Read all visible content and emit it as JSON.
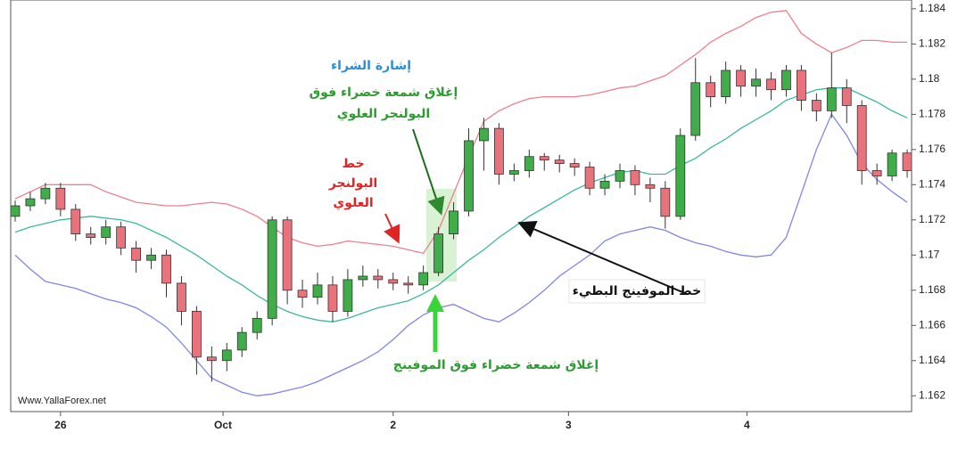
{
  "chart_data": {
    "type": "candlestick",
    "watermark": "Www.YallaForex.net",
    "up_color": "#3fae49",
    "down_color": "#e8737d",
    "ylim": [
      1.1611,
      1.1845
    ],
    "yticks": [
      1.162,
      1.164,
      1.166,
      1.168,
      1.17,
      1.172,
      1.174,
      1.176,
      1.178,
      1.18,
      1.182,
      1.184
    ],
    "xticks": [
      {
        "value": 3,
        "label": "26"
      },
      {
        "value": 13.75,
        "label": "Oct"
      },
      {
        "value": 25,
        "label": "2"
      },
      {
        "value": 36.6,
        "label": "3"
      },
      {
        "value": 48.4,
        "label": "4"
      }
    ],
    "open": [
      1.1722,
      1.1728,
      1.1732,
      1.1738,
      1.1726,
      1.1712,
      1.171,
      1.1716,
      1.1704,
      1.1697,
      1.17,
      1.1684,
      1.1668,
      1.1642,
      1.164,
      1.1646,
      1.1656,
      1.1664,
      1.172,
      1.168,
      1.1676,
      1.1683,
      1.1668,
      1.1686,
      1.1688,
      1.1686,
      1.1684,
      1.1683,
      1.169,
      1.1712,
      1.1725,
      1.1765,
      1.1772,
      1.1746,
      1.1748,
      1.1756,
      1.1754,
      1.1752,
      1.175,
      1.1738,
      1.1742,
      1.1748,
      1.174,
      1.1738,
      1.1722,
      1.1768,
      1.1798,
      1.179,
      1.1805,
      1.1796,
      1.18,
      1.1794,
      1.1805,
      1.1788,
      1.1782,
      1.1795,
      1.1785,
      1.1748,
      1.1745,
      1.1758
    ],
    "high": [
      1.1731,
      1.1736,
      1.1741,
      1.1741,
      1.1729,
      1.1716,
      1.172,
      1.1719,
      1.1708,
      1.1704,
      1.1703,
      1.1688,
      1.1671,
      1.1648,
      1.165,
      1.1659,
      1.1668,
      1.1722,
      1.1722,
      1.1686,
      1.169,
      1.1688,
      1.1692,
      1.1694,
      1.1692,
      1.169,
      1.1688,
      1.1694,
      1.1716,
      1.173,
      1.1772,
      1.1778,
      1.1775,
      1.1752,
      1.176,
      1.1758,
      1.1757,
      1.1755,
      1.1753,
      1.1746,
      1.1752,
      1.1751,
      1.1744,
      1.1742,
      1.1772,
      1.1812,
      1.1802,
      1.181,
      1.1808,
      1.1806,
      1.1804,
      1.1808,
      1.1808,
      1.1792,
      1.1815,
      1.18,
      1.1788,
      1.1752,
      1.176,
      1.176
    ],
    "low": [
      1.1719,
      1.1725,
      1.1729,
      1.1722,
      1.1708,
      1.1706,
      1.1706,
      1.17,
      1.169,
      1.1692,
      1.1676,
      1.166,
      1.1632,
      1.1628,
      1.1634,
      1.1642,
      1.1652,
      1.166,
      1.1672,
      1.167,
      1.1672,
      1.1662,
      1.1665,
      1.1682,
      1.1681,
      1.168,
      1.1678,
      1.168,
      1.1688,
      1.1709,
      1.1722,
      1.1748,
      1.174,
      1.1742,
      1.1744,
      1.1748,
      1.1747,
      1.1745,
      1.1734,
      1.1734,
      1.1738,
      1.1734,
      1.173,
      1.1715,
      1.172,
      1.1765,
      1.1784,
      1.1786,
      1.179,
      1.179,
      1.1788,
      1.179,
      1.1782,
      1.1776,
      1.1778,
      1.1775,
      1.174,
      1.174,
      1.1742,
      1.1744
    ],
    "close": [
      1.1728,
      1.1732,
      1.1738,
      1.1726,
      1.1712,
      1.171,
      1.1716,
      1.1704,
      1.1697,
      1.17,
      1.1684,
      1.1668,
      1.1642,
      1.164,
      1.1646,
      1.1656,
      1.1664,
      1.172,
      1.168,
      1.1676,
      1.1683,
      1.1668,
      1.1686,
      1.1688,
      1.1686,
      1.1684,
      1.1683,
      1.169,
      1.1712,
      1.1725,
      1.1765,
      1.1772,
      1.1746,
      1.1748,
      1.1756,
      1.1754,
      1.1752,
      1.175,
      1.1738,
      1.1742,
      1.1748,
      1.174,
      1.1738,
      1.1722,
      1.1768,
      1.1798,
      1.179,
      1.1805,
      1.1796,
      1.18,
      1.1794,
      1.1805,
      1.1788,
      1.1782,
      1.1795,
      1.1785,
      1.1748,
      1.1745,
      1.1758,
      1.1748
    ],
    "series": [
      {
        "color": "#ee7f8c",
        "values": [
          1.1732,
          1.1736,
          1.174,
          1.174,
          1.174,
          1.174,
          1.1736,
          1.1733,
          1.173,
          1.1729,
          1.1728,
          1.1728,
          1.1729,
          1.173,
          1.1729,
          1.1726,
          1.1722,
          1.1716,
          1.171,
          1.1707,
          1.1705,
          1.1706,
          1.1708,
          1.1707,
          1.1706,
          1.1705,
          1.1703,
          1.1701,
          1.1714,
          1.1735,
          1.1756,
          1.1776,
          1.1782,
          1.1786,
          1.1789,
          1.179,
          1.179,
          1.179,
          1.1791,
          1.1793,
          1.1795,
          1.1796,
          1.1799,
          1.1802,
          1.1808,
          1.1814,
          1.1821,
          1.1826,
          1.183,
          1.1835,
          1.1838,
          1.1839,
          1.1826,
          1.182,
          1.1815,
          1.1818,
          1.1822,
          1.1822,
          1.1821,
          1.1821
        ]
      },
      {
        "color": "#3cb8a2",
        "values": [
          1.1713,
          1.1716,
          1.1718,
          1.172,
          1.1721,
          1.1722,
          1.1721,
          1.172,
          1.1718,
          1.1714,
          1.171,
          1.1705,
          1.17,
          1.1694,
          1.1688,
          1.1683,
          1.1677,
          1.1672,
          1.1668,
          1.1665,
          1.1663,
          1.1662,
          1.1664,
          1.1667,
          1.167,
          1.1672,
          1.1674,
          1.1678,
          1.1683,
          1.169,
          1.1697,
          1.1703,
          1.171,
          1.1716,
          1.1722,
          1.1727,
          1.1732,
          1.1737,
          1.1741,
          1.1744,
          1.1747,
          1.1748,
          1.1746,
          1.1746,
          1.1751,
          1.1755,
          1.1761,
          1.1766,
          1.1772,
          1.1777,
          1.1782,
          1.1788,
          1.1791,
          1.1794,
          1.1795,
          1.1795,
          1.1791,
          1.1787,
          1.1782,
          1.1778
        ]
      },
      {
        "color": "#7f86e6",
        "values": [
          1.17,
          1.1692,
          1.1685,
          1.1683,
          1.1681,
          1.1678,
          1.1675,
          1.1673,
          1.167,
          1.1665,
          1.1659,
          1.165,
          1.164,
          1.163,
          1.1626,
          1.1622,
          1.162,
          1.1621,
          1.1623,
          1.1625,
          1.1628,
          1.1632,
          1.1636,
          1.164,
          1.1645,
          1.1652,
          1.166,
          1.1666,
          1.167,
          1.1672,
          1.1668,
          1.1664,
          1.1662,
          1.1667,
          1.1673,
          1.168,
          1.1688,
          1.1694,
          1.17,
          1.1708,
          1.1712,
          1.1714,
          1.1716,
          1.1714,
          1.171,
          1.1707,
          1.1705,
          1.1702,
          1.17,
          1.1699,
          1.17,
          1.171,
          1.1735,
          1.176,
          1.178,
          1.1768,
          1.1752,
          1.1743,
          1.1736,
          1.173
        ]
      }
    ],
    "annotations": [
      {
        "lines": [
          "إشارة الشراء"
        ],
        "color": "#2a8fd8"
      },
      {
        "lines": [
          "إغلاق شمعة خضراء فوق",
          "البولنجر العلوي"
        ],
        "color": "#2e9a32"
      },
      {
        "lines": [
          "خط",
          "البولنجر",
          "العلوي"
        ],
        "color": "#e02424"
      },
      {
        "lines": [
          "خط الموفينج البطيء"
        ],
        "color": "#111111"
      },
      {
        "lines": [
          "إغلاق شمعة خضراء فوق الموفينج"
        ],
        "color": "#2e9a32"
      }
    ]
  }
}
